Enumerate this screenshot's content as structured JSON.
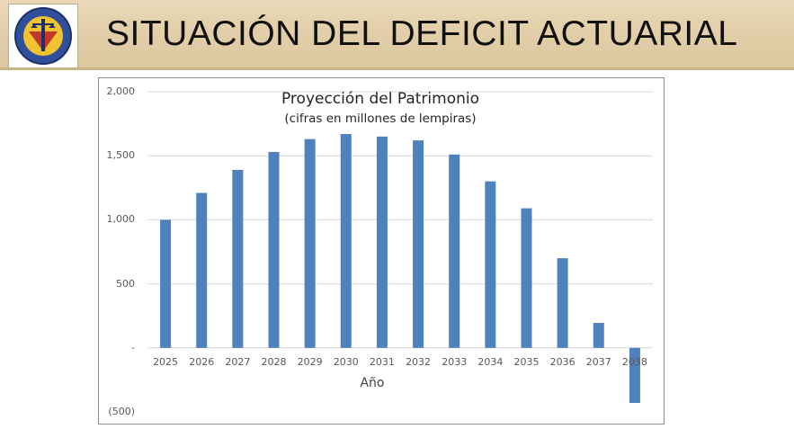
{
  "slide": {
    "title": "SITUACIÓN DEL DEFICIT ACTUARIAL"
  },
  "colors": {
    "header_bg": "#e2cfa9",
    "bar": "#4f81bd",
    "gridline": "#d9d9d9"
  },
  "chart_data": {
    "type": "bar",
    "title": "Proyección del Patrimonio",
    "subtitle": "(cifras en millones de lempiras)",
    "xlabel": "Año",
    "ylabel": "",
    "categories": [
      "2025",
      "2026",
      "2027",
      "2028",
      "2029",
      "2030",
      "2031",
      "2032",
      "2033",
      "2034",
      "2035",
      "2036",
      "2037",
      "2038"
    ],
    "values": [
      1000,
      1210,
      1390,
      1530,
      1630,
      1670,
      1650,
      1620,
      1510,
      1300,
      1090,
      700,
      195,
      -430
    ],
    "ylim": [
      -500,
      2000
    ],
    "yticks": [
      {
        "value": 2000,
        "label": "2,000"
      },
      {
        "value": 1500,
        "label": "1,500"
      },
      {
        "value": 1000,
        "label": "1,000"
      },
      {
        "value": 500,
        "label": "500"
      },
      {
        "value": 0,
        "label": "-"
      },
      {
        "value": -500,
        "label": "(500)"
      }
    ],
    "grid": true,
    "legend": "none"
  }
}
